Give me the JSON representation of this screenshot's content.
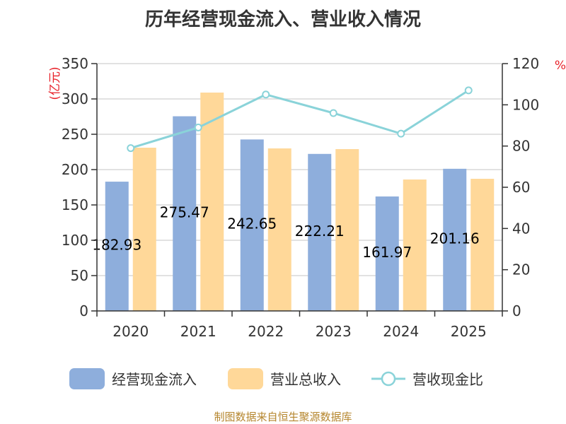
{
  "chart_data": {
    "type": "bar",
    "title": "历年经营现金流入、营业收入情况",
    "categories": [
      "2020",
      "2021",
      "2022",
      "2023",
      "2024",
      "2025"
    ],
    "y_left": {
      "unit_label": "(亿元)",
      "ylim": [
        0,
        350
      ],
      "ticks": [
        0,
        50,
        100,
        150,
        200,
        250,
        300,
        350
      ]
    },
    "y_right": {
      "unit_label": "%",
      "ylim": [
        0,
        120
      ],
      "ticks": [
        0,
        20,
        40,
        60,
        80,
        100,
        120
      ]
    },
    "series": [
      {
        "name": "经营现金流入",
        "type": "bar",
        "axis": "left",
        "color": "#8eaedc",
        "values": [
          182.93,
          275.47,
          242.65,
          222.21,
          161.97,
          201.16
        ],
        "data_labels": [
          "182.93",
          "275.47",
          "242.65",
          "222.21",
          "161.97",
          "201.16"
        ]
      },
      {
        "name": "营业总收入",
        "type": "bar",
        "axis": "left",
        "color": "#ffd899",
        "values": [
          231,
          309,
          230,
          229,
          186,
          187
        ]
      },
      {
        "name": "营收现金比",
        "type": "line",
        "axis": "right",
        "color": "#8ad3d9",
        "values": [
          79,
          89,
          105,
          96,
          86,
          107
        ]
      }
    ],
    "grid": true,
    "legend_position": "bottom"
  },
  "source_note": "制图数据来自恒生聚源数据库"
}
